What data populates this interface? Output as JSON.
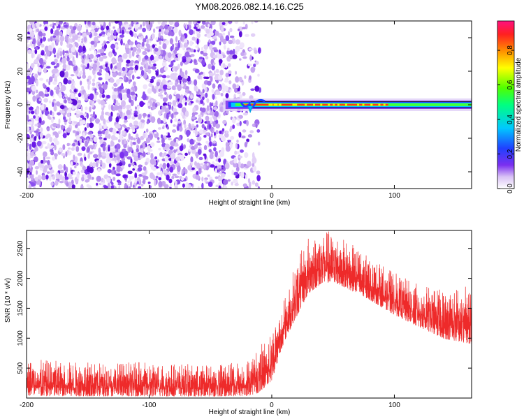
{
  "title": "YM08.2026.082.14.16.C25",
  "chart_data": [
    {
      "type": "heatmap",
      "title": "YM08.2026.082.14.16.C25",
      "xlabel": "Height of straight line (km)",
      "ylabel": "Frequency (Hz)",
      "xlim": [
        -200,
        163
      ],
      "ylim": [
        -50,
        50
      ],
      "xticks": [
        -200,
        -100,
        0,
        100
      ],
      "yticks": [
        -40,
        -20,
        0,
        20,
        40
      ],
      "colorbar": {
        "label": "Normalized spectral amplitude",
        "range": [
          0.0,
          0.97
        ],
        "ticks": [
          "0.0",
          "0.2",
          "0.4",
          "0.6",
          "0.8"
        ],
        "tick_values": [
          0.0,
          0.2,
          0.4,
          0.6,
          0.8
        ],
        "colors": [
          "#ffffff",
          "#d9c2f5",
          "#7b2ff0",
          "#2040ff",
          "#00c8ff",
          "#00ff80",
          "#50ff00",
          "#ffff00",
          "#ff9000",
          "#ff2020",
          "#ff1080"
        ]
      },
      "signal": {
        "noise_region_x": [
          -200,
          -20
        ],
        "noise_amplitude": 0.15,
        "band_start_x": -40,
        "band_center_freq": 0,
        "band_center_amplitude": 0.85
      }
    },
    {
      "type": "line",
      "xlabel": "Height of straight line (km)",
      "ylabel": "SNR (10 * v/v)",
      "xlim": [
        -200,
        163
      ],
      "ylim": [
        0,
        2800
      ],
      "xticks": [
        -200,
        -100,
        0,
        100
      ],
      "yticks": [
        500,
        1000,
        1500,
        2000,
        2500
      ],
      "color": "#ee2a2a",
      "series": [
        {
          "name": "SNR",
          "x": [
            -200,
            -150,
            -100,
            -50,
            -20,
            -10,
            0,
            10,
            20,
            30,
            40,
            50,
            60,
            80,
            100,
            120,
            140,
            163
          ],
          "envelope_low": [
            0,
            0,
            0,
            0,
            0,
            50,
            250,
            900,
            1300,
            1700,
            1850,
            1900,
            1800,
            1600,
            1350,
            1150,
            950,
            850
          ],
          "envelope_high": [
            650,
            600,
            600,
            550,
            650,
            850,
            1150,
            1650,
            2300,
            2700,
            2800,
            2800,
            2650,
            2350,
            2100,
            1900,
            1800,
            1900
          ]
        }
      ]
    }
  ]
}
